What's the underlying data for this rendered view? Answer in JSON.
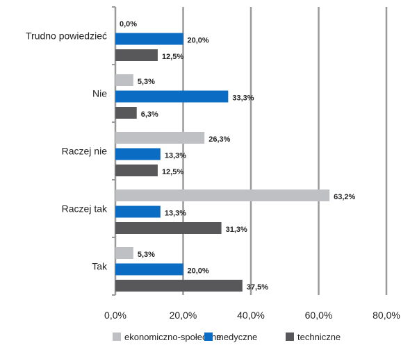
{
  "chart_data": {
    "type": "bar",
    "orientation": "horizontal",
    "categories": [
      "Trudno powiedzieć",
      "Nie",
      "Raczej nie",
      "Raczej tak",
      "Tak"
    ],
    "series": [
      {
        "name": "ekonomiczno-społeczne",
        "color": "#bfc0c3",
        "values": [
          0.0,
          5.3,
          26.3,
          63.2,
          5.3
        ],
        "labels": [
          "0,0%",
          "5,3%",
          "26,3%",
          "63,2%",
          "5,3%"
        ]
      },
      {
        "name": "medyczne",
        "color": "#0a6cc2",
        "values": [
          20.0,
          33.3,
          13.3,
          13.3,
          20.0
        ],
        "labels": [
          "20,0%",
          "33,3%",
          "13,3%",
          "13,3%",
          "20,0%"
        ]
      },
      {
        "name": "techniczne",
        "color": "#58585a",
        "values": [
          12.5,
          6.3,
          12.5,
          31.3,
          37.5
        ],
        "labels": [
          "12,5%",
          "6,3%",
          "12,5%",
          "31,3%",
          "37,5%"
        ]
      }
    ],
    "xticks": [
      0,
      20,
      40,
      60,
      80
    ],
    "xtick_labels": [
      "0,0%",
      "20,0%",
      "40,0%",
      "60,0%",
      "80,0%"
    ],
    "xlim": [
      0,
      80
    ],
    "grid": true,
    "legend_position": "bottom",
    "title": "",
    "xlabel": "",
    "ylabel": ""
  }
}
